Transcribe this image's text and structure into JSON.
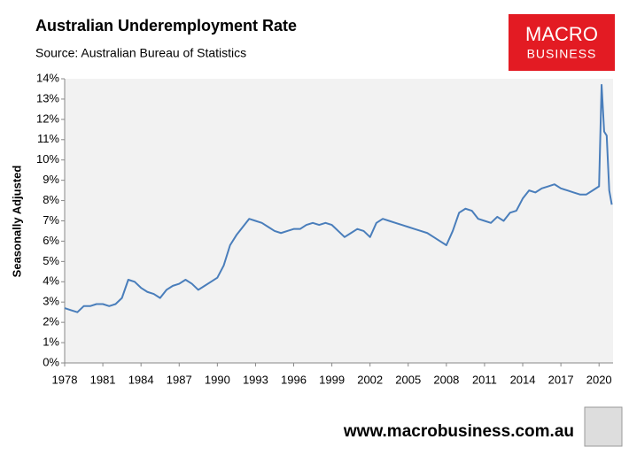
{
  "chart_data": {
    "type": "line",
    "title": "Australian Underemployment Rate",
    "subtitle": "Source: Australian Bureau of Statistics",
    "y_label": "Seasonally Adjusted",
    "x": [
      1978.0,
      1978.5,
      1979.0,
      1979.5,
      1980.0,
      1980.5,
      1981.0,
      1981.5,
      1982.0,
      1982.5,
      1983.0,
      1983.5,
      1984.0,
      1984.5,
      1985.0,
      1985.5,
      1986.0,
      1986.5,
      1987.0,
      1987.5,
      1988.0,
      1988.5,
      1989.0,
      1989.5,
      1990.0,
      1990.5,
      1991.0,
      1991.5,
      1992.0,
      1992.5,
      1993.0,
      1993.5,
      1994.0,
      1994.5,
      1995.0,
      1995.5,
      1996.0,
      1996.5,
      1997.0,
      1997.5,
      1998.0,
      1998.5,
      1999.0,
      1999.5,
      2000.0,
      2000.5,
      2001.0,
      2001.5,
      2002.0,
      2002.5,
      2003.0,
      2003.5,
      2004.0,
      2004.5,
      2005.0,
      2005.5,
      2006.0,
      2006.5,
      2007.0,
      2007.5,
      2008.0,
      2008.5,
      2009.0,
      2009.5,
      2010.0,
      2010.5,
      2011.0,
      2011.5,
      2012.0,
      2012.5,
      2013.0,
      2013.5,
      2014.0,
      2014.5,
      2015.0,
      2015.5,
      2016.0,
      2016.5,
      2017.0,
      2017.5,
      2018.0,
      2018.5,
      2019.0,
      2019.5,
      2020.0,
      2020.2,
      2020.4,
      2020.6,
      2020.8,
      2021.0
    ],
    "series": [
      {
        "name": "Underemployment rate",
        "color": "#4a7ebb",
        "values": [
          2.7,
          2.6,
          2.5,
          2.8,
          2.8,
          2.9,
          2.9,
          2.8,
          2.9,
          3.2,
          4.1,
          4.0,
          3.7,
          3.5,
          3.4,
          3.2,
          3.6,
          3.8,
          3.9,
          4.1,
          3.9,
          3.6,
          3.8,
          4.0,
          4.2,
          4.8,
          5.8,
          6.3,
          6.7,
          7.1,
          7.0,
          6.9,
          6.7,
          6.5,
          6.4,
          6.5,
          6.6,
          6.6,
          6.8,
          6.9,
          6.8,
          6.9,
          6.8,
          6.5,
          6.2,
          6.4,
          6.6,
          6.5,
          6.2,
          6.9,
          7.1,
          7.0,
          6.9,
          6.8,
          6.7,
          6.6,
          6.5,
          6.4,
          6.2,
          6.0,
          5.8,
          6.5,
          7.4,
          7.6,
          7.5,
          7.1,
          7.0,
          6.9,
          7.2,
          7.0,
          7.4,
          7.5,
          8.1,
          8.5,
          8.4,
          8.6,
          8.7,
          8.8,
          8.6,
          8.5,
          8.4,
          8.3,
          8.3,
          8.5,
          8.7,
          13.7,
          11.4,
          11.2,
          8.5,
          7.8
        ]
      }
    ],
    "xlim": [
      1978,
      2021.1
    ],
    "xticks": [
      1978,
      1981,
      1984,
      1987,
      1990,
      1993,
      1996,
      1999,
      2002,
      2005,
      2008,
      2011,
      2014,
      2017,
      2020
    ],
    "ylim": [
      0,
      14
    ],
    "yticks": [
      {
        "value": 0,
        "label": "0%"
      },
      {
        "value": 1,
        "label": "1%"
      },
      {
        "value": 2,
        "label": "2%"
      },
      {
        "value": 3,
        "label": "3%"
      },
      {
        "value": 4,
        "label": "4%"
      },
      {
        "value": 5,
        "label": "5%"
      },
      {
        "value": 6,
        "label": "6%"
      },
      {
        "value": 7,
        "label": "7%"
      },
      {
        "value": 8,
        "label": "8%"
      },
      {
        "value": 9,
        "label": "9%"
      },
      {
        "value": 10,
        "label": "10%"
      },
      {
        "value": 11,
        "label": "11%"
      },
      {
        "value": 12,
        "label": "12%"
      },
      {
        "value": 13,
        "label": "13%"
      },
      {
        "value": 14,
        "label": "14%"
      }
    ],
    "grid": false,
    "plot_background": "#f2f2f2"
  },
  "branding": {
    "logo": [
      "MACRO",
      "BUSINESS"
    ],
    "website": "www.macrobusiness.com.au"
  }
}
